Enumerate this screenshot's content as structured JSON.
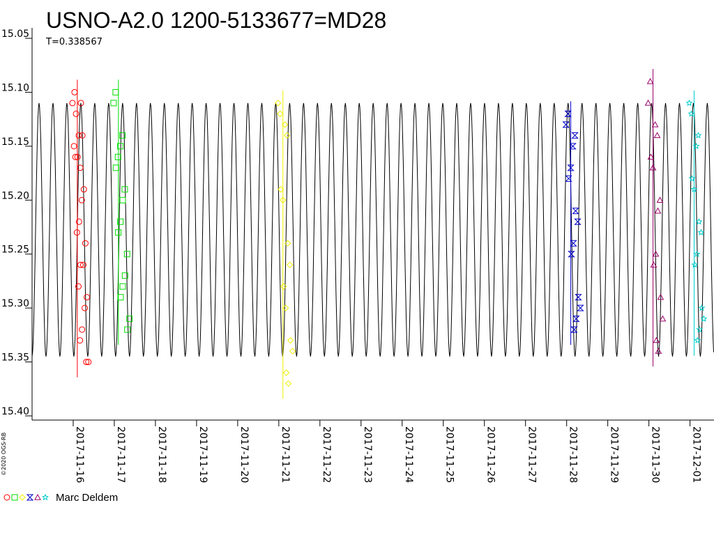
{
  "chart_data": {
    "type": "scatter",
    "title": "USNO-A2.0 1200-5133677=MD28",
    "subtitle": "T=0.338567",
    "ylim": [
      15.05,
      15.4
    ],
    "y_inverted": true,
    "yticks": [
      "15.05",
      "15.10",
      "15.15",
      "15.20",
      "15.25",
      "15.30",
      "15.35",
      "15.40"
    ],
    "xticks": [
      "2017-11-16",
      "2017-11-17",
      "2017-11-18",
      "2017-11-19",
      "2017-11-20",
      "2017-11-21",
      "2017-11-22",
      "2017-11-23",
      "2017-11-24",
      "2017-11-25",
      "2017-11-26",
      "2017-11-27",
      "2017-11-28",
      "2017-11-29",
      "2017-11-30",
      "2017-12-01"
    ],
    "xlim": [
      "2017-11-15T00:00",
      "2017-12-01T14:00"
    ],
    "model_curve": {
      "period_days": 0.338567,
      "min_mag": 15.11,
      "max_mag": 15.345
    },
    "credit": "©2020 OGS-RB",
    "legend": {
      "observer": "Marc Deldem"
    },
    "series": [
      {
        "name": "",
        "marker": "circle",
        "color": "#ff0000",
        "date": "2017-11-16",
        "points": [
          [
            15.11,
            15.1
          ],
          [
            15.14,
            15.11
          ],
          [
            15.15,
            15.12
          ],
          [
            15.17,
            15.14
          ],
          [
            15.16,
            15.16
          ],
          [
            15.2,
            15.19
          ],
          [
            15.23,
            15.22
          ],
          [
            15.26,
            15.24
          ],
          [
            15.28,
            15.26
          ],
          [
            15.3,
            15.29
          ],
          [
            15.33,
            15.32
          ],
          [
            15.35,
            15.35
          ]
        ]
      },
      {
        "name": "",
        "marker": "square",
        "color": "#00dd00",
        "date": "2017-11-17",
        "points": [
          [
            15.11,
            15.1
          ],
          [
            15.15,
            15.14
          ],
          [
            15.17,
            15.16
          ],
          [
            15.2,
            15.19
          ],
          [
            15.23,
            15.22
          ],
          [
            15.27,
            15.25
          ],
          [
            15.29,
            15.28
          ],
          [
            15.32,
            15.31
          ]
        ]
      },
      {
        "name": "",
        "marker": "diamond",
        "color": "#eeee00",
        "date": "2017-11-21",
        "points": [
          [
            15.11,
            15.12
          ],
          [
            15.13,
            15.14
          ],
          [
            15.19,
            15.2
          ],
          [
            15.24,
            15.26
          ],
          [
            15.28,
            15.3
          ],
          [
            15.33,
            15.34
          ],
          [
            15.36,
            15.37
          ]
        ]
      },
      {
        "name": "",
        "marker": "hourglass",
        "color": "#0000cc",
        "date": "2017-11-28",
        "points": [
          [
            15.13,
            15.12
          ],
          [
            15.15,
            15.14
          ],
          [
            15.18,
            15.17
          ],
          [
            15.21,
            15.22
          ],
          [
            15.25,
            15.24
          ],
          [
            15.29,
            15.3
          ],
          [
            15.32,
            15.31
          ]
        ]
      },
      {
        "name": "",
        "marker": "triangle",
        "color": "#990066",
        "date": "2017-11-30",
        "points": [
          [
            15.11,
            15.09
          ],
          [
            15.13,
            15.14
          ],
          [
            15.16,
            15.17
          ],
          [
            15.21,
            15.2
          ],
          [
            15.26,
            15.25
          ],
          [
            15.29,
            15.31
          ],
          [
            15.33,
            15.34
          ]
        ]
      },
      {
        "name": "",
        "marker": "star",
        "color": "#00cccc",
        "date": "2017-12-01",
        "points": [
          [
            15.11,
            15.12
          ],
          [
            15.15,
            15.14
          ],
          [
            15.18,
            15.19
          ],
          [
            15.22,
            15.23
          ],
          [
            15.26,
            15.25
          ],
          [
            15.3,
            15.31
          ],
          [
            15.33,
            15.32
          ]
        ]
      }
    ]
  }
}
